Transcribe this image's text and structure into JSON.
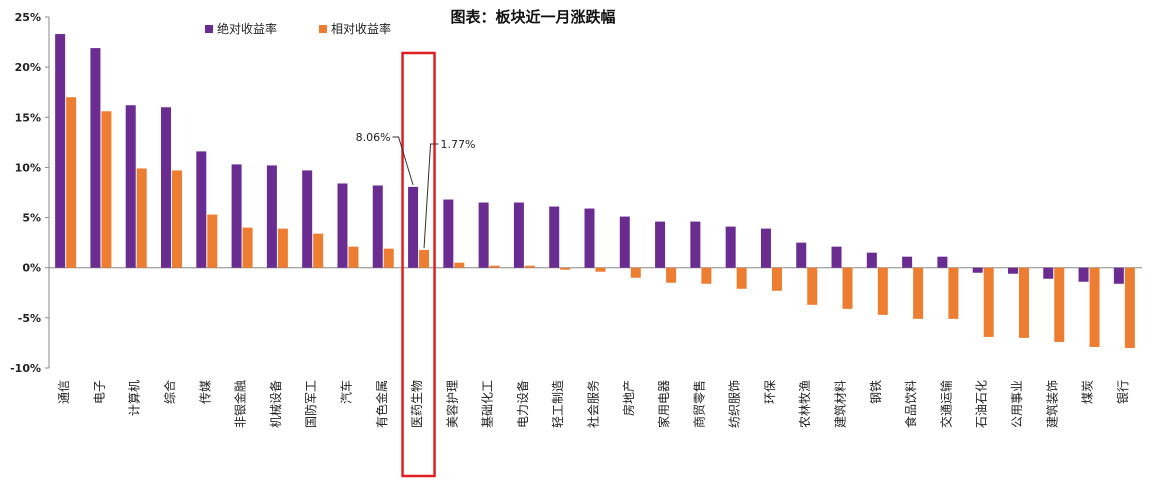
{
  "chart_data": {
    "type": "bar",
    "title": "图表：板块近一月涨跌幅",
    "xlabel": "",
    "ylabel": "",
    "ylim": [
      -10,
      25
    ],
    "yticks": [
      "25%",
      "20%",
      "15%",
      "10%",
      "5%",
      "0%",
      "-5%",
      "-10%"
    ],
    "ytick_values": [
      25,
      20,
      15,
      10,
      5,
      0,
      -5,
      -10
    ],
    "legend_position": "top-left",
    "grid": false,
    "categories": [
      "通信",
      "电子",
      "计算机",
      "综合",
      "传媒",
      "非银金融",
      "机械设备",
      "国防军工",
      "汽车",
      "有色金属",
      "医药生物",
      "美容护理",
      "基础化工",
      "电力设备",
      "轻工制造",
      "社会服务",
      "房地产",
      "家用电器",
      "商贸零售",
      "纺织服饰",
      "环保",
      "农林牧渔",
      "建筑材料",
      "钢铁",
      "食品饮料",
      "交通运输",
      "石油石化",
      "公用事业",
      "建筑装饰",
      "煤炭",
      "银行"
    ],
    "series": [
      {
        "name": "绝对收益率",
        "color": "#6a2c91",
        "values": [
          23.3,
          21.9,
          16.2,
          16.0,
          11.6,
          10.3,
          10.2,
          9.7,
          8.4,
          8.2,
          8.06,
          6.8,
          6.5,
          6.5,
          6.1,
          5.9,
          5.1,
          4.6,
          4.6,
          4.1,
          3.9,
          2.5,
          2.1,
          1.5,
          1.1,
          1.1,
          -0.5,
          -0.6,
          -1.1,
          -1.4,
          -1.6
        ]
      },
      {
        "name": "相对收益率",
        "color": "#ed7d31",
        "values": [
          17.0,
          15.6,
          9.9,
          9.7,
          5.3,
          4.0,
          3.9,
          3.4,
          2.1,
          1.9,
          1.77,
          0.5,
          0.2,
          0.2,
          -0.2,
          -0.4,
          -1.0,
          -1.5,
          -1.6,
          -2.1,
          -2.3,
          -3.7,
          -4.1,
          -4.7,
          -5.1,
          -5.1,
          -6.9,
          -7.0,
          -7.4,
          -7.9,
          -8.0
        ]
      }
    ],
    "annotations": [
      {
        "text": "8.06%",
        "category": "医药生物",
        "series": "绝对收益率"
      },
      {
        "text": "1.77%",
        "category": "医药生物",
        "series": "相对收益率"
      }
    ],
    "highlight": {
      "category": "医药生物",
      "color": "#e02020"
    }
  }
}
